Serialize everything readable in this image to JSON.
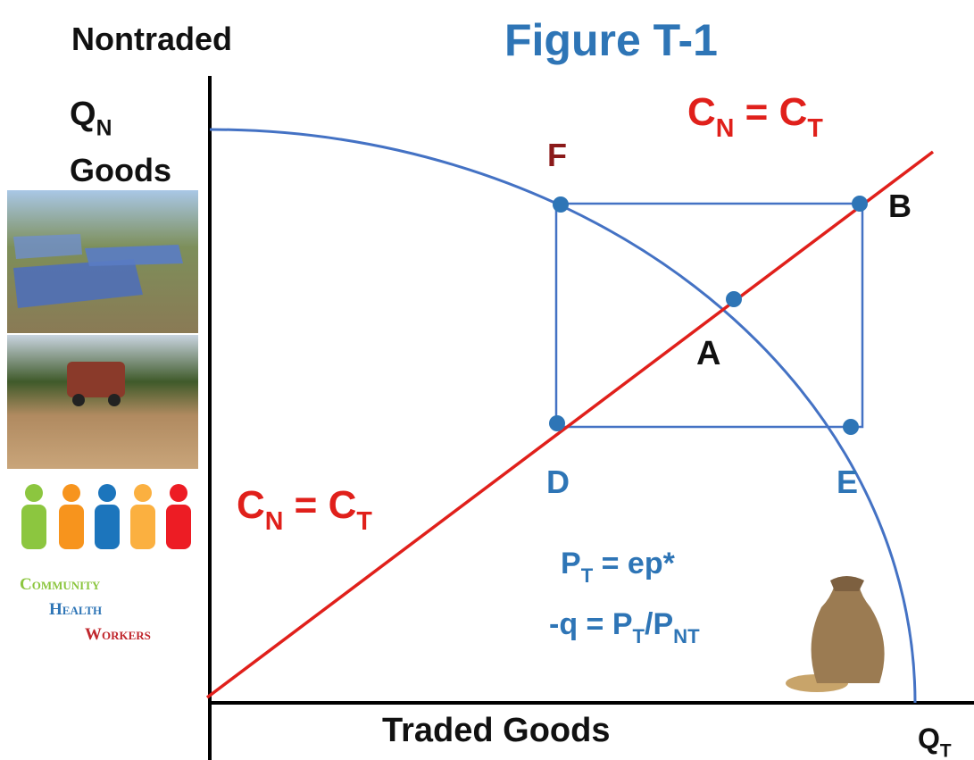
{
  "header": {
    "title": "Figure T-1"
  },
  "axes": {
    "y_label_top": "Nontraded",
    "y_symbol": [
      {
        "text": "Q"
      },
      {
        "text": "N",
        "sub": true
      }
    ],
    "y_label_bottom": "Goods",
    "x_label": "Traded Goods",
    "x_symbol": [
      {
        "text": "Q"
      },
      {
        "text": "T",
        "sub": true
      }
    ]
  },
  "line_labels": {
    "upper": [
      {
        "text": "C"
      },
      {
        "text": "N",
        "sub": true
      },
      {
        "text": " = C"
      },
      {
        "text": "T",
        "sub": true
      }
    ],
    "lower": [
      {
        "text": "C"
      },
      {
        "text": "N",
        "sub": true
      },
      {
        "text": " = C"
      },
      {
        "text": "T",
        "sub": true
      }
    ]
  },
  "points": {
    "F": "F",
    "B": "B",
    "A": "A",
    "D": "D",
    "E": "E"
  },
  "equations": [
    [
      {
        "text": "P"
      },
      {
        "text": "T",
        "sub": true
      },
      {
        "text": " = ep*"
      }
    ],
    [
      {
        "text": "-q = P"
      },
      {
        "text": "T",
        "sub": true
      },
      {
        "text": "/P"
      },
      {
        "text": "NT",
        "sub": true
      }
    ]
  ],
  "logo": {
    "line1": "Community",
    "line2": "Health",
    "line3": "Workers"
  }
}
